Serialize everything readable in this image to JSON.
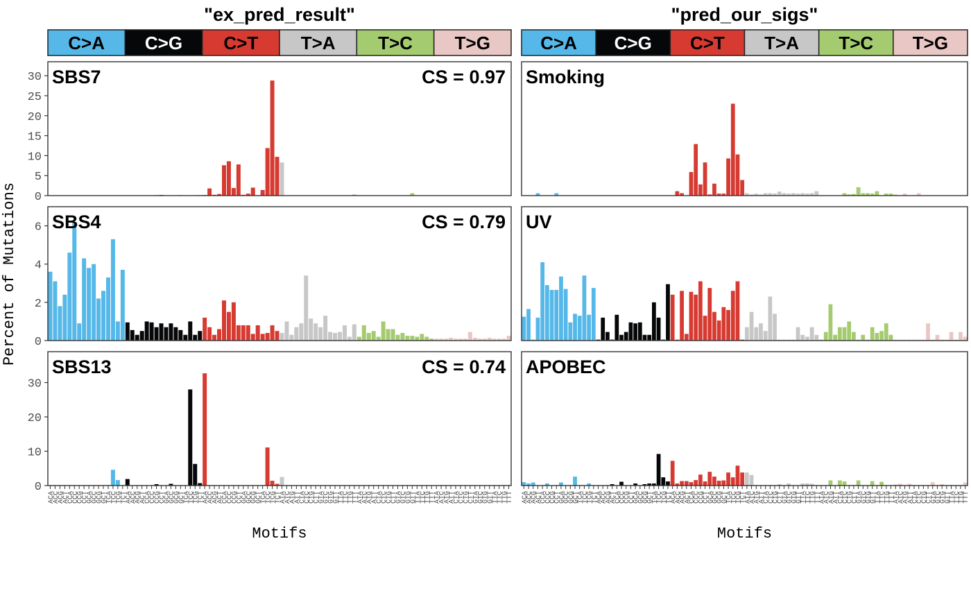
{
  "figure": {
    "ylabel": "Percent of Mutations",
    "xlabel": "Motifs"
  },
  "colors": {
    "C>A": "#56B8E8",
    "C>G": "#050708",
    "C>T": "#D63A31",
    "T>A": "#C7C7C7",
    "T>C": "#A4CB6F",
    "T>G": "#E8C7C4",
    "panel_border": "#333333",
    "strip_border": "#222222"
  },
  "mutation_types": [
    "C>A",
    "C>G",
    "C>T",
    "T>A",
    "T>C",
    "T>G"
  ],
  "motif_labels": [
    "ACA",
    "ACC",
    "ACG",
    "ACT",
    "CCA",
    "CCC",
    "CCG",
    "CCT",
    "GCA",
    "GCC",
    "GCG",
    "GCT",
    "TCA",
    "TCC",
    "TCG",
    "TCT",
    "ACA",
    "ACC",
    "ACG",
    "ACT",
    "CCA",
    "CCC",
    "CCG",
    "CCT",
    "GCA",
    "GCC",
    "GCG",
    "GCT",
    "TCA",
    "TCC",
    "TCG",
    "TCT",
    "ACA",
    "ACC",
    "ACG",
    "ACT",
    "CCA",
    "CCC",
    "CCG",
    "CCT",
    "GCA",
    "GCC",
    "GCG",
    "GCT",
    "TCA",
    "TCC",
    "TCG",
    "TCT",
    "ATA",
    "ATC",
    "ATG",
    "ATT",
    "CTA",
    "CTC",
    "CTG",
    "CTT",
    "GTA",
    "GTC",
    "GTG",
    "GTT",
    "TTA",
    "TTC",
    "TTG",
    "TTT",
    "ATA",
    "ATC",
    "ATG",
    "ATT",
    "CTA",
    "CTC",
    "CTG",
    "CTT",
    "GTA",
    "GTC",
    "GTG",
    "GTT",
    "TTA",
    "TTC",
    "TTG",
    "TTT",
    "ATA",
    "ATC",
    "ATG",
    "ATT",
    "CTA",
    "CTC",
    "CTG",
    "CTT",
    "GTA",
    "GTC",
    "GTG",
    "GTT",
    "TTA",
    "TTC",
    "TTG",
    "TTT"
  ],
  "chart_data": [
    {
      "type": "bar",
      "column_title": "\"ex_pred_result\"",
      "signature": "SBS7",
      "cs_label": "CS = 0.97",
      "yticks": [
        0,
        5,
        10,
        15,
        20,
        25,
        30
      ],
      "ylim": [
        0,
        33.5
      ],
      "values": [
        0.05,
        0.02,
        0.02,
        0.05,
        0.03,
        0.03,
        0.02,
        0.05,
        0.04,
        0.02,
        0.02,
        0.04,
        0.03,
        0.03,
        0.02,
        0.05,
        0.02,
        0.01,
        0.02,
        0.02,
        0.02,
        0.02,
        0.1,
        0.15,
        0.05,
        0.02,
        0.05,
        0.1,
        0.05,
        0.02,
        0.05,
        0.1,
        0.15,
        1.8,
        0.2,
        0.4,
        7.6,
        8.6,
        1.9,
        7.8,
        0.2,
        0.5,
        2.0,
        0.1,
        1.4,
        11.9,
        28.8,
        9.7,
        8.3,
        0.05,
        0.02,
        0.02,
        0.03,
        0.02,
        0.02,
        0.05,
        0.02,
        0.03,
        0.02,
        0.02,
        0.03,
        0.02,
        0.02,
        0.3,
        0.1,
        0.05,
        0.05,
        0.05,
        0.05,
        0.05,
        0.05,
        0.05,
        0.05,
        0.05,
        0.05,
        0.6,
        0.05,
        0.05,
        0.05,
        0.05,
        0.05,
        0.02,
        0.02,
        0.02,
        0.02,
        0.02,
        0.02,
        0.02,
        0.02,
        0.02,
        0.02,
        0.02,
        0.02,
        0.02,
        0.02,
        0.02
      ]
    },
    {
      "type": "bar",
      "column_title": "\"pred_our_sigs\"",
      "signature": "Smoking",
      "cs_label": "",
      "yticks": [
        0,
        5,
        10,
        15,
        20,
        25,
        30
      ],
      "ylim": [
        0,
        33.5
      ],
      "values": [
        0.05,
        0.05,
        0.05,
        0.6,
        0.05,
        0.05,
        0.05,
        0.6,
        0.05,
        0.05,
        0.05,
        0.05,
        0.05,
        0.05,
        0.05,
        0.05,
        0.05,
        0.05,
        0.05,
        0.05,
        0.05,
        0.05,
        0.05,
        0.05,
        0.05,
        0.05,
        0.05,
        0.05,
        0.05,
        0.05,
        0.05,
        0.05,
        0.05,
        1.1,
        0.6,
        0.05,
        5.9,
        12.9,
        2.8,
        8.3,
        0.3,
        3.0,
        0.5,
        0.5,
        9.3,
        23.0,
        10.3,
        3.9,
        0.6,
        0.3,
        0.5,
        0.3,
        0.6,
        0.6,
        0.5,
        1.0,
        0.6,
        0.5,
        0.6,
        0.5,
        0.6,
        0.5,
        0.6,
        1.1,
        0.05,
        0.05,
        0.05,
        0.05,
        0.05,
        0.6,
        0.3,
        0.4,
        2.1,
        0.6,
        0.6,
        0.5,
        1.1,
        0.05,
        0.5,
        0.5,
        0.3,
        0.05,
        0.5,
        0.05,
        0.05,
        0.6,
        0.05,
        0.05,
        0.05,
        0.05,
        0.05,
        0.05,
        0.05,
        0.05,
        0.05,
        0.05
      ]
    },
    {
      "type": "bar",
      "column_title": "\"ex_pred_result\"",
      "signature": "SBS4",
      "cs_label": "CS = 0.79",
      "yticks": [
        0,
        2,
        4,
        6
      ],
      "ylim": [
        0,
        7.0
      ],
      "values": [
        3.6,
        3.1,
        1.8,
        2.4,
        4.6,
        6.2,
        0.9,
        4.3,
        3.8,
        4.0,
        2.2,
        2.6,
        3.3,
        5.3,
        1.0,
        3.7,
        0.95,
        0.55,
        0.3,
        0.5,
        1.0,
        0.95,
        0.7,
        0.9,
        0.7,
        0.9,
        0.7,
        0.55,
        0.3,
        1.0,
        0.3,
        0.5,
        1.2,
        0.7,
        0.3,
        0.6,
        2.1,
        1.5,
        2.0,
        0.8,
        0.8,
        0.8,
        0.35,
        0.8,
        0.35,
        0.4,
        0.8,
        0.5,
        0.4,
        1.0,
        0.3,
        0.7,
        0.9,
        3.4,
        1.15,
        0.9,
        0.7,
        1.3,
        0.45,
        0.4,
        0.45,
        0.8,
        0.2,
        0.85,
        0.2,
        0.8,
        0.4,
        0.5,
        0.2,
        1.0,
        0.6,
        0.6,
        0.3,
        0.4,
        0.25,
        0.25,
        0.2,
        0.35,
        0.2,
        0.1,
        0.1,
        0.1,
        0.1,
        0.15,
        0.1,
        0.1,
        0.1,
        0.45,
        0.15,
        0.1,
        0.1,
        0.15,
        0.1,
        0.1,
        0.1,
        0.25
      ]
    },
    {
      "type": "bar",
      "column_title": "\"pred_our_sigs\"",
      "signature": "UV",
      "cs_label": "",
      "yticks": [
        0,
        2,
        4,
        6
      ],
      "ylim": [
        0,
        7.0
      ],
      "values": [
        1.25,
        1.65,
        0.05,
        1.2,
        4.1,
        2.9,
        2.65,
        2.65,
        3.35,
        2.7,
        0.95,
        1.4,
        1.3,
        3.4,
        1.35,
        2.75,
        0.05,
        1.2,
        0.45,
        0.05,
        1.35,
        0.3,
        0.45,
        0.95,
        0.9,
        0.95,
        0.3,
        0.3,
        2.0,
        1.2,
        0.05,
        2.95,
        2.4,
        0.05,
        2.6,
        0.35,
        2.55,
        2.4,
        3.1,
        1.3,
        2.75,
        1.5,
        1.05,
        1.75,
        1.6,
        2.6,
        3.1,
        0.05,
        0.7,
        1.5,
        0.7,
        0.9,
        0.5,
        2.3,
        1.4,
        0.05,
        0.05,
        0.05,
        0.05,
        0.7,
        0.3,
        0.2,
        0.7,
        0.3,
        0.05,
        0.45,
        1.9,
        0.3,
        0.7,
        0.7,
        1.0,
        0.45,
        0.05,
        0.3,
        0.05,
        0.7,
        0.4,
        0.5,
        0.9,
        0.3,
        0.05,
        0.05,
        0.05,
        0.05,
        0.05,
        0.05,
        0.05,
        0.9,
        0.05,
        0.3,
        0.05,
        0.05,
        0.45,
        0.05,
        0.45,
        0.2
      ]
    },
    {
      "type": "bar",
      "column_title": "\"ex_pred_result\"",
      "signature": "SBS13",
      "cs_label": "CS = 0.74",
      "yticks": [
        0,
        10,
        20,
        30
      ],
      "ylim": [
        0,
        39.0
      ],
      "values": [
        0.02,
        0.02,
        0.02,
        0.02,
        0.02,
        0.02,
        0.02,
        0.02,
        0.02,
        0.02,
        0.02,
        0.02,
        0.1,
        4.6,
        1.6,
        0.05,
        1.9,
        0.05,
        0.1,
        0.1,
        0.1,
        0.05,
        0.4,
        0.1,
        0.1,
        0.5,
        0.05,
        0.05,
        0.05,
        28.0,
        6.3,
        0.7,
        32.7,
        0.1,
        0.02,
        0.02,
        0.02,
        0.02,
        0.02,
        0.02,
        0.02,
        0.02,
        0.02,
        0.02,
        0.02,
        11.1,
        1.4,
        0.5,
        2.5,
        0.02,
        0.02,
        0.02,
        0.02,
        0.02,
        0.02,
        0.02,
        0.02,
        0.02,
        0.02,
        0.02,
        0.02,
        0.02,
        0.02,
        0.02,
        0.02,
        0.02,
        0.02,
        0.02,
        0.02,
        0.02,
        0.02,
        0.02,
        0.02,
        0.02,
        0.02,
        0.02,
        0.02,
        0.02,
        0.02,
        0.02,
        0.02,
        0.02,
        0.02,
        0.02,
        0.02,
        0.02,
        0.02,
        0.02,
        0.02,
        0.02,
        0.02,
        0.02,
        0.02,
        0.02,
        0.02,
        0.02
      ]
    },
    {
      "type": "bar",
      "column_title": "\"pred_our_sigs\"",
      "signature": "APOBEC",
      "cs_label": "",
      "yticks": [
        0,
        10,
        20,
        30
      ],
      "ylim": [
        0,
        39.0
      ],
      "values": [
        1.0,
        0.6,
        0.9,
        0.05,
        0.05,
        0.6,
        0.05,
        0.05,
        0.9,
        0.05,
        0.05,
        2.6,
        0.05,
        0.05,
        0.6,
        0.05,
        0.05,
        0.05,
        0.05,
        0.4,
        0.05,
        1.1,
        0.05,
        0.05,
        0.6,
        0.05,
        0.4,
        0.6,
        0.6,
        9.2,
        2.4,
        1.2,
        7.2,
        0.6,
        1.3,
        1.3,
        1.0,
        1.6,
        3.2,
        1.2,
        4.0,
        2.6,
        1.4,
        1.5,
        3.8,
        2.4,
        5.8,
        3.8,
        3.8,
        3.1,
        0.05,
        0.05,
        0.05,
        0.05,
        0.05,
        0.4,
        0.05,
        0.6,
        0.05,
        0.05,
        0.6,
        0.6,
        0.5,
        0.05,
        0.05,
        0.05,
        1.5,
        0.05,
        1.5,
        1.2,
        0.05,
        0.05,
        1.5,
        0.05,
        0.05,
        1.3,
        0.05,
        1.1,
        0.05,
        0.05,
        0.3,
        0.5,
        0.05,
        0.5,
        0.05,
        0.05,
        0.05,
        0.05,
        1.0,
        0.05,
        0.4,
        0.05,
        0.05,
        0.05,
        0.05,
        0.9
      ]
    }
  ]
}
